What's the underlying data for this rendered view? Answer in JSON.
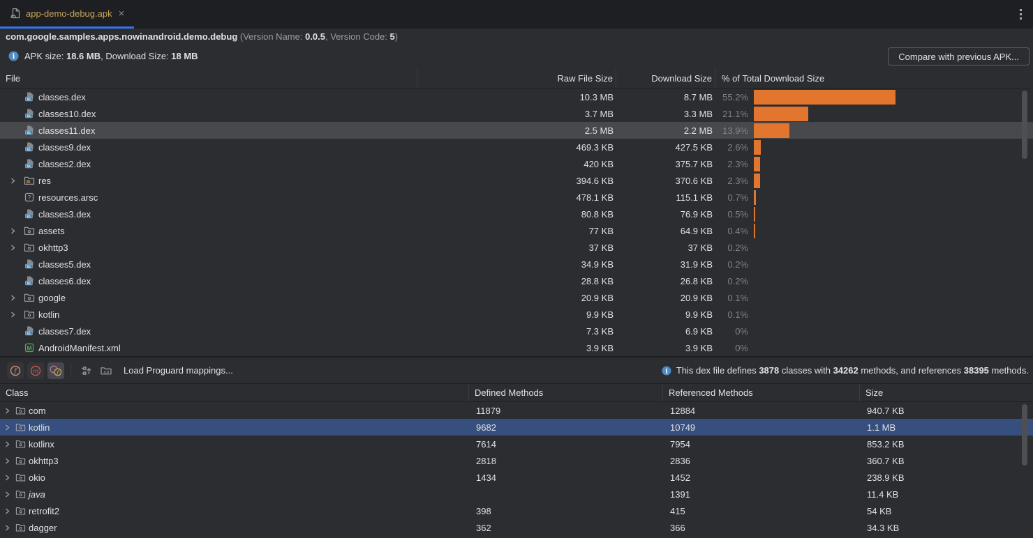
{
  "colors": {
    "accent_bar": "#e2762f",
    "tab_underline": "#3574f0",
    "selection_gray": "#47494c",
    "selection_blue": "#364f7e",
    "tab_title": "#c4a458",
    "info_icon": "#4e8ac8"
  },
  "tab_bar": {
    "tab_title": "app-demo-debug.apk",
    "close_icon": "×"
  },
  "header": {
    "package_name": "com.google.samples.apps.nowinandroid.demo.debug",
    "version_label_1": " (Version Name: ",
    "version_name": "0.0.5",
    "version_label_2": ", Version Code: ",
    "version_code": "5",
    "version_label_3": ")"
  },
  "summary": {
    "apk_size_label": "APK size: ",
    "apk_size": "18.6 MB",
    "download_size_label": ", Download Size: ",
    "download_size": "18 MB",
    "compare_button_label": "Compare with previous APK..."
  },
  "file_table": {
    "columns": [
      "File",
      "Raw File Size",
      "Download Size",
      "% of Total Download Size"
    ],
    "rows": [
      {
        "name": "classes.dex",
        "icon": "dex",
        "expandable": false,
        "raw": "10.3 MB",
        "download": "8.7 MB",
        "pct": "55.2%",
        "pct_value": 55.2,
        "selected": false
      },
      {
        "name": "classes10.dex",
        "icon": "dex",
        "expandable": false,
        "raw": "3.7 MB",
        "download": "3.3 MB",
        "pct": "21.1%",
        "pct_value": 21.1,
        "selected": false
      },
      {
        "name": "classes11.dex",
        "icon": "dex",
        "expandable": false,
        "raw": "2.5 MB",
        "download": "2.2 MB",
        "pct": "13.9%",
        "pct_value": 13.9,
        "selected": true
      },
      {
        "name": "classes9.dex",
        "icon": "dex",
        "expandable": false,
        "raw": "469.3 KB",
        "download": "427.5 KB",
        "pct": "2.6%",
        "pct_value": 2.6,
        "selected": false
      },
      {
        "name": "classes2.dex",
        "icon": "dex",
        "expandable": false,
        "raw": "420 KB",
        "download": "375.7 KB",
        "pct": "2.3%",
        "pct_value": 2.3,
        "selected": false
      },
      {
        "name": "res",
        "icon": "folder-res",
        "expandable": true,
        "raw": "394.6 KB",
        "download": "370.6 KB",
        "pct": "2.3%",
        "pct_value": 2.3,
        "selected": false
      },
      {
        "name": "resources.arsc",
        "icon": "arsc",
        "expandable": false,
        "raw": "478.1 KB",
        "download": "115.1 KB",
        "pct": "0.7%",
        "pct_value": 0.7,
        "selected": false
      },
      {
        "name": "classes3.dex",
        "icon": "dex",
        "expandable": false,
        "raw": "80.8 KB",
        "download": "76.9 KB",
        "pct": "0.5%",
        "pct_value": 0.5,
        "selected": false
      },
      {
        "name": "assets",
        "icon": "folder",
        "expandable": true,
        "raw": "77 KB",
        "download": "64.9 KB",
        "pct": "0.4%",
        "pct_value": 0.4,
        "selected": false
      },
      {
        "name": "okhttp3",
        "icon": "folder",
        "expandable": true,
        "raw": "37 KB",
        "download": "37 KB",
        "pct": "0.2%",
        "pct_value": 0.2,
        "selected": false
      },
      {
        "name": "classes5.dex",
        "icon": "dex",
        "expandable": false,
        "raw": "34.9 KB",
        "download": "31.9 KB",
        "pct": "0.2%",
        "pct_value": 0.2,
        "selected": false
      },
      {
        "name": "classes6.dex",
        "icon": "dex",
        "expandable": false,
        "raw": "28.8 KB",
        "download": "26.8 KB",
        "pct": "0.2%",
        "pct_value": 0.2,
        "selected": false
      },
      {
        "name": "google",
        "icon": "folder",
        "expandable": true,
        "raw": "20.9 KB",
        "download": "20.9 KB",
        "pct": "0.1%",
        "pct_value": 0.1,
        "selected": false
      },
      {
        "name": "kotlin",
        "icon": "folder",
        "expandable": true,
        "raw": "9.9 KB",
        "download": "9.9 KB",
        "pct": "0.1%",
        "pct_value": 0.1,
        "selected": false
      },
      {
        "name": "classes7.dex",
        "icon": "dex",
        "expandable": false,
        "raw": "7.3 KB",
        "download": "6.9 KB",
        "pct": "0%",
        "pct_value": 0,
        "selected": false
      },
      {
        "name": "AndroidManifest.xml",
        "icon": "manifest",
        "expandable": false,
        "raw": "3.9 KB",
        "download": "3.9 KB",
        "pct": "0%",
        "pct_value": 0,
        "selected": false
      }
    ]
  },
  "dex_toolbar": {
    "icons": [
      {
        "name": "fields-filter-icon",
        "letter": "f"
      },
      {
        "name": "methods-filter-icon",
        "letter": "m"
      },
      {
        "name": "referenced-filter-icon",
        "letter": "f"
      },
      {
        "name": "usage-tree-icon",
        "letter": ""
      },
      {
        "name": "package-names-icon",
        "letter": "a.b"
      }
    ],
    "load_mappings_label": "Load Proguard mappings...",
    "info": {
      "prefix": "This dex file defines ",
      "classes_count": "3878",
      "mid1": " classes with ",
      "methods_count": "34262",
      "mid2": " methods, and references ",
      "references_count": "38395",
      "suffix": " methods."
    }
  },
  "class_table": {
    "columns": [
      "Class",
      "Defined Methods",
      "Referenced Methods",
      "Size"
    ],
    "rows": [
      {
        "name": "com",
        "defined": "11879",
        "referenced": "12884",
        "size": "940.7 KB",
        "selected": false,
        "italic": false
      },
      {
        "name": "kotlin",
        "defined": "9682",
        "referenced": "10749",
        "size": "1.1 MB",
        "selected": true,
        "italic": false
      },
      {
        "name": "kotlinx",
        "defined": "7614",
        "referenced": "7954",
        "size": "853.2 KB",
        "selected": false,
        "italic": false
      },
      {
        "name": "okhttp3",
        "defined": "2818",
        "referenced": "2836",
        "size": "360.7 KB",
        "selected": false,
        "italic": false
      },
      {
        "name": "okio",
        "defined": "1434",
        "referenced": "1452",
        "size": "238.9 KB",
        "selected": false,
        "italic": false
      },
      {
        "name": "java",
        "defined": "",
        "referenced": "1391",
        "size": "11.4 KB",
        "selected": false,
        "italic": true
      },
      {
        "name": "retrofit2",
        "defined": "398",
        "referenced": "415",
        "size": "54 KB",
        "selected": false,
        "italic": false
      },
      {
        "name": "dagger",
        "defined": "362",
        "referenced": "366",
        "size": "34.3 KB",
        "selected": false,
        "italic": false
      }
    ]
  }
}
